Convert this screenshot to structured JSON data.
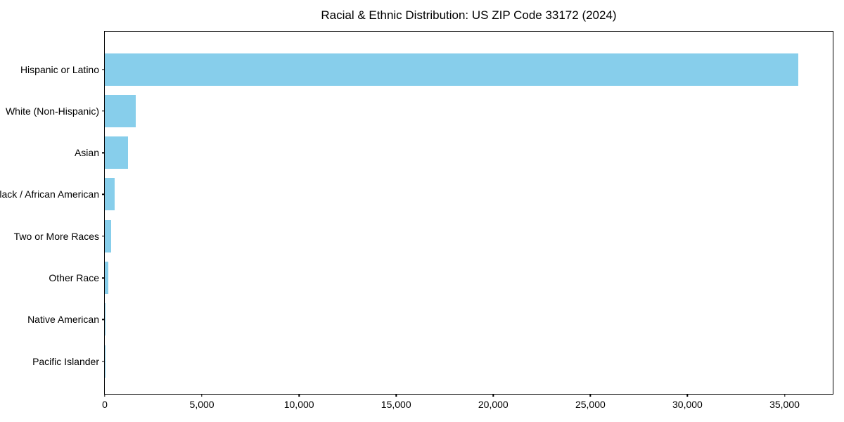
{
  "chart_data": {
    "type": "bar",
    "orientation": "horizontal",
    "title": "Racial & Ethnic Distribution: US ZIP Code 33172 (2024)",
    "categories": [
      "Hispanic or Latino",
      "White (Non-Hispanic)",
      "Asian",
      "Black / African American",
      "Two or More Races",
      "Other Race",
      "Native American",
      "Pacific Islander"
    ],
    "values": [
      35700,
      1580,
      1180,
      500,
      340,
      180,
      40,
      10
    ],
    "bar_color": "#87CEEB",
    "axis_color": "#000000",
    "text_color": "#000000",
    "background_color": "#FFFFFF",
    "xlabel": "",
    "ylabel": "",
    "xlim": [
      0,
      37480
    ],
    "xticks": [
      0,
      5000,
      10000,
      15000,
      20000,
      25000,
      30000,
      35000
    ],
    "xtick_labels": [
      "0",
      "5,000",
      "10,000",
      "15,000",
      "20,000",
      "25,000",
      "30,000",
      "35,000"
    ],
    "grid": false,
    "legend": false
  }
}
